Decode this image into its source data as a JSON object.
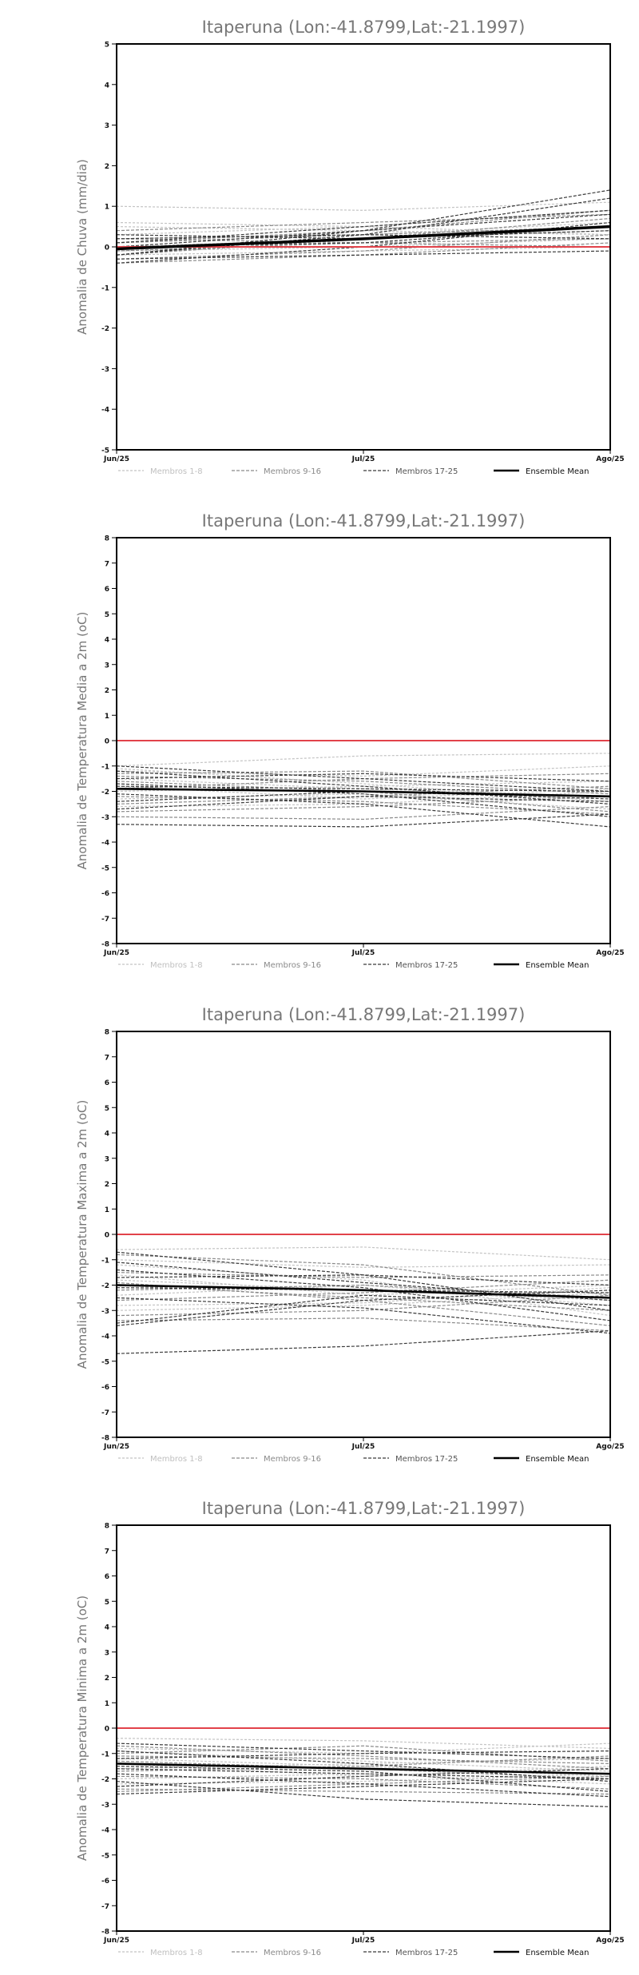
{
  "chart_data": [
    {
      "type": "line",
      "title": "Itaperuna (Lon:-41.8799,Lat:-21.1997)",
      "ylabel": "Anomalia de Chuva (mm/dia)",
      "xlabel": "",
      "categories": [
        "Jun/25",
        "Jul/25",
        "Ago/25"
      ],
      "ylim": [
        -5,
        5
      ],
      "yticks": [
        -5,
        -4,
        -3,
        -2,
        -1,
        0,
        1,
        2,
        3,
        4,
        5
      ],
      "reference_line": 0,
      "legend": [
        "Membros 1-8",
        "Membros 9-16",
        "Membros 17-25",
        "Ensemble Mean"
      ],
      "legend_position": "bottom",
      "grid": false,
      "members": [
        [
          0.5,
          0.4,
          0.3
        ],
        [
          1.0,
          0.9,
          1.1
        ],
        [
          0.2,
          0.3,
          0.6
        ],
        [
          -0.1,
          0.0,
          0.2
        ],
        [
          0.3,
          0.5,
          0.9
        ],
        [
          -0.2,
          -0.1,
          0.0
        ],
        [
          0.0,
          0.2,
          0.4
        ],
        [
          0.6,
          0.5,
          0.3
        ],
        [
          -0.4,
          -0.2,
          0.1
        ],
        [
          0.1,
          0.3,
          0.5
        ],
        [
          -0.3,
          -0.1,
          0.3
        ],
        [
          0.4,
          0.6,
          0.8
        ],
        [
          0.2,
          0.1,
          0.0
        ],
        [
          -0.2,
          0.2,
          0.7
        ],
        [
          0.1,
          0.4,
          0.9
        ],
        [
          -0.1,
          0.1,
          0.2
        ],
        [
          0.0,
          0.4,
          1.4
        ],
        [
          -0.2,
          0.3,
          1.2
        ],
        [
          0.1,
          0.5,
          0.9
        ],
        [
          -0.4,
          0.0,
          0.6
        ],
        [
          0.3,
          0.2,
          0.4
        ],
        [
          -0.3,
          -0.2,
          -0.1
        ],
        [
          0.0,
          0.1,
          0.5
        ],
        [
          -0.2,
          0.4,
          0.8
        ],
        [
          0.2,
          0.3,
          0.2
        ]
      ],
      "mean": [
        -0.05,
        0.2,
        0.5
      ]
    },
    {
      "type": "line",
      "title": "Itaperuna (Lon:-41.8799,Lat:-21.1997)",
      "ylabel": "Anomalia de Temperatura Media a 2m (oC)",
      "xlabel": "",
      "categories": [
        "Jun/25",
        "Jul/25",
        "Ago/25"
      ],
      "ylim": [
        -8,
        8
      ],
      "yticks": [
        -8,
        -7,
        -6,
        -5,
        -4,
        -3,
        -2,
        -1,
        0,
        1,
        2,
        3,
        4,
        5,
        6,
        7,
        8
      ],
      "reference_line": 0,
      "legend": [
        "Membros 1-8",
        "Membros 9-16",
        "Membros 17-25",
        "Ensemble Mean"
      ],
      "legend_position": "bottom",
      "grid": false,
      "members": [
        [
          -1.0,
          -0.6,
          -0.5
        ],
        [
          -1.2,
          -1.4,
          -1.0
        ],
        [
          -1.5,
          -1.9,
          -2.2
        ],
        [
          -2.0,
          -1.8,
          -1.6
        ],
        [
          -2.3,
          -2.1,
          -2.7
        ],
        [
          -1.1,
          -1.7,
          -2.4
        ],
        [
          -1.8,
          -2.3,
          -1.9
        ],
        [
          -2.6,
          -2.5,
          -2.0
        ],
        [
          -1.3,
          -1.2,
          -1.9
        ],
        [
          -1.6,
          -2.0,
          -2.8
        ],
        [
          -2.8,
          -2.6,
          -2.2
        ],
        [
          -1.9,
          -1.5,
          -1.3
        ],
        [
          -2.2,
          -2.4,
          -2.9
        ],
        [
          -1.4,
          -1.6,
          -2.1
        ],
        [
          -3.0,
          -3.1,
          -2.6
        ],
        [
          -2.5,
          -2.2,
          -1.8
        ],
        [
          -1.2,
          -1.8,
          -2.5
        ],
        [
          -1.7,
          -2.1,
          -3.0
        ],
        [
          -2.4,
          -2.0,
          -2.3
        ],
        [
          -3.3,
          -3.4,
          -2.9
        ],
        [
          -1.0,
          -1.5,
          -2.0
        ],
        [
          -2.1,
          -2.5,
          -3.4
        ],
        [
          -1.5,
          -1.3,
          -1.6
        ],
        [
          -2.7,
          -2.2,
          -2.4
        ],
        [
          -1.8,
          -1.9,
          -2.0
        ]
      ],
      "mean": [
        -1.9,
        -2.0,
        -2.2
      ]
    },
    {
      "type": "line",
      "title": "Itaperuna (Lon:-41.8799,Lat:-21.1997)",
      "ylabel": "Anomalia de Temperatura Maxima a 2m (oC)",
      "xlabel": "",
      "categories": [
        "Jun/25",
        "Jul/25",
        "Ago/25"
      ],
      "ylim": [
        -8,
        8
      ],
      "yticks": [
        -8,
        -7,
        -6,
        -5,
        -4,
        -3,
        -2,
        -1,
        0,
        1,
        2,
        3,
        4,
        5,
        6,
        7,
        8
      ],
      "reference_line": 0,
      "legend": [
        "Membros 1-8",
        "Membros 9-16",
        "Membros 17-25",
        "Ensemble Mean"
      ],
      "legend_position": "bottom",
      "grid": false,
      "members": [
        [
          -0.6,
          -0.5,
          -1.0
        ],
        [
          -1.0,
          -1.3,
          -1.2
        ],
        [
          -1.8,
          -2.2,
          -2.6
        ],
        [
          -2.4,
          -2.0,
          -2.8
        ],
        [
          -3.0,
          -2.8,
          -2.3
        ],
        [
          -1.2,
          -1.8,
          -3.2
        ],
        [
          -1.6,
          -2.4,
          -2.0
        ],
        [
          -2.8,
          -2.7,
          -2.1
        ],
        [
          -0.8,
          -1.2,
          -2.4
        ],
        [
          -2.0,
          -2.5,
          -3.0
        ],
        [
          -3.4,
          -3.3,
          -3.8
        ],
        [
          -1.5,
          -1.7,
          -1.6
        ],
        [
          -2.2,
          -2.0,
          -2.5
        ],
        [
          -1.9,
          -2.6,
          -3.6
        ],
        [
          -3.2,
          -3.0,
          -2.4
        ],
        [
          -2.6,
          -2.3,
          -1.8
        ],
        [
          -0.7,
          -1.6,
          -3.0
        ],
        [
          -1.4,
          -2.1,
          -3.4
        ],
        [
          -3.6,
          -2.6,
          -2.2
        ],
        [
          -4.7,
          -4.4,
          -3.8
        ],
        [
          -1.1,
          -1.9,
          -2.6
        ],
        [
          -2.5,
          -2.9,
          -3.9
        ],
        [
          -1.7,
          -1.6,
          -2.0
        ],
        [
          -3.5,
          -2.4,
          -2.8
        ],
        [
          -2.1,
          -2.2,
          -2.3
        ]
      ],
      "mean": [
        -2.0,
        -2.2,
        -2.5
      ]
    },
    {
      "type": "line",
      "title": "Itaperuna (Lon:-41.8799,Lat:-21.1997)",
      "ylabel": "Anomalia de Temperatura Minima a 2m (oC)",
      "xlabel": "",
      "categories": [
        "Jun/25",
        "Jul/25",
        "Ago/25"
      ],
      "ylim": [
        -8,
        8
      ],
      "yticks": [
        -8,
        -7,
        -6,
        -5,
        -4,
        -3,
        -2,
        -1,
        0,
        1,
        2,
        3,
        4,
        5,
        6,
        7,
        8
      ],
      "reference_line": 0,
      "legend": [
        "Membros 1-8",
        "Membros 9-16",
        "Membros 17-25",
        "Ensemble Mean"
      ],
      "legend_position": "bottom",
      "grid": false,
      "members": [
        [
          -0.4,
          -0.5,
          -0.8
        ],
        [
          -0.8,
          -1.0,
          -0.6
        ],
        [
          -1.2,
          -1.5,
          -1.9
        ],
        [
          -1.6,
          -1.4,
          -1.2
        ],
        [
          -2.0,
          -1.8,
          -2.2
        ],
        [
          -0.9,
          -1.3,
          -1.7
        ],
        [
          -1.4,
          -1.9,
          -1.5
        ],
        [
          -2.2,
          -2.1,
          -1.8
        ],
        [
          -1.0,
          -0.7,
          -1.3
        ],
        [
          -1.3,
          -1.6,
          -2.0
        ],
        [
          -2.4,
          -2.5,
          -2.6
        ],
        [
          -1.7,
          -1.5,
          -1.1
        ],
        [
          -1.9,
          -2.0,
          -2.4
        ],
        [
          -0.7,
          -1.1,
          -1.6
        ],
        [
          -2.5,
          -2.2,
          -1.9
        ],
        [
          -1.1,
          -1.2,
          -1.4
        ],
        [
          -0.9,
          -1.4,
          -2.1
        ],
        [
          -1.5,
          -1.7,
          -2.5
        ],
        [
          -2.1,
          -2.8,
          -3.1
        ],
        [
          -2.6,
          -2.3,
          -2.0
        ],
        [
          -1.2,
          -1.0,
          -0.9
        ],
        [
          -1.8,
          -2.2,
          -2.7
        ],
        [
          -0.6,
          -0.9,
          -1.2
        ],
        [
          -2.3,
          -1.9,
          -1.6
        ],
        [
          -1.6,
          -1.8,
          -2.0
        ]
      ],
      "mean": [
        -1.4,
        -1.6,
        -1.8
      ]
    }
  ]
}
